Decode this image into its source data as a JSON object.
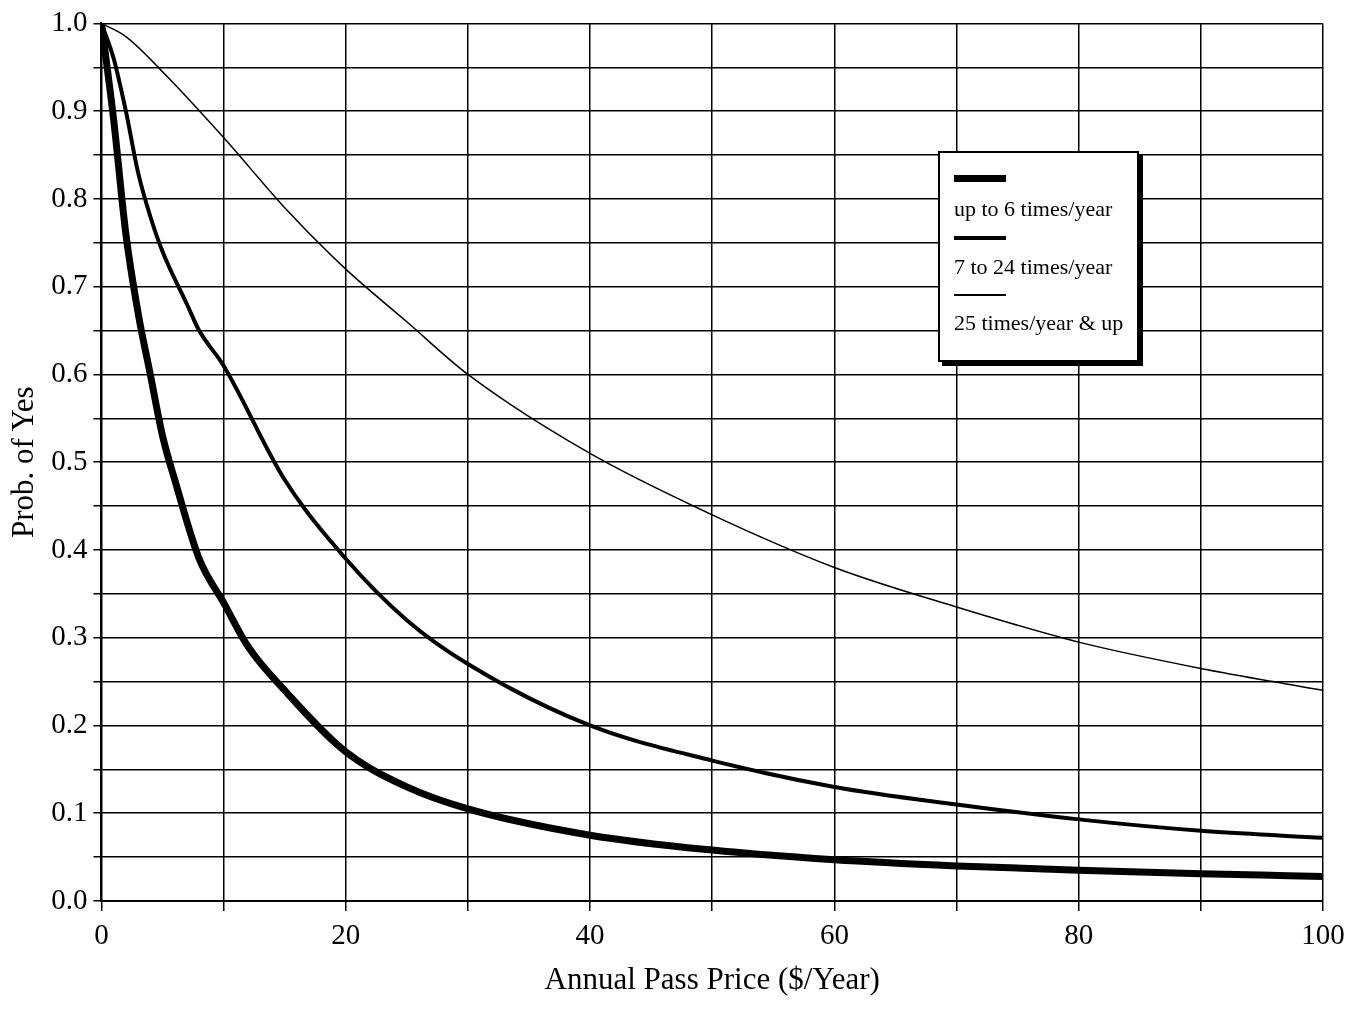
{
  "chart_data": {
    "type": "line",
    "xlabel": "Annual Pass Price ($/Year)",
    "ylabel": "Prob. of Yes",
    "xlim": [
      0,
      100
    ],
    "xticks": [
      0,
      {
        "value": 10,
        "label": null
      },
      20,
      {
        "value": 30,
        "label": null
      },
      40,
      {
        "value": 50,
        "label": null
      },
      60,
      {
        "value": 70,
        "label": null
      },
      80,
      {
        "value": 90,
        "label": null
      },
      100
    ],
    "ylim": [
      0,
      1
    ],
    "yticks": [
      {
        "value": 0,
        "label": "0.0"
      },
      {
        "value": 0.05,
        "label": null
      },
      0.1,
      {
        "value": 0.15,
        "label": null
      },
      0.2,
      {
        "value": 0.25,
        "label": null
      },
      0.3,
      {
        "value": 0.35,
        "label": null
      },
      0.4,
      {
        "value": 0.45,
        "label": null
      },
      0.5,
      {
        "value": 0.55,
        "label": null
      },
      0.6,
      {
        "value": 0.65,
        "label": null
      },
      0.7,
      {
        "value": 0.75,
        "label": null
      },
      0.8,
      {
        "value": 0.85,
        "label": null
      },
      0.9,
      {
        "value": 0.95,
        "label": null
      },
      {
        "value": 1,
        "label": "1.0"
      }
    ],
    "grid": true,
    "legend": "top right",
    "marker": "none",
    "line_style": "solid",
    "series": [
      {
        "name": "up to 6 times/year",
        "color": "#000000",
        "x": [
          0,
          1,
          2,
          3,
          4,
          5,
          6,
          8,
          10,
          12,
          15,
          20,
          25,
          30,
          40,
          50,
          60,
          70,
          80,
          90,
          100
        ],
        "values": [
          1,
          0.89,
          0.76,
          0.67,
          0.6,
          0.53,
          0.48,
          0.39,
          0.34,
          0.29,
          0.24,
          0.17,
          0.13,
          0.105,
          0.075,
          0.058,
          0.047,
          0.04,
          0.035,
          0.031,
          0.028
        ]
      },
      {
        "name": "7 to 24 times/year",
        "color": "#000000",
        "x": [
          0,
          1,
          2,
          3,
          4,
          5,
          7,
          8,
          10,
          15,
          20,
          25,
          30,
          40,
          50,
          60,
          70,
          80,
          90,
          100
        ],
        "values": [
          1,
          0.96,
          0.9,
          0.83,
          0.78,
          0.74,
          0.68,
          0.65,
          0.61,
          0.48,
          0.39,
          0.32,
          0.27,
          0.2,
          0.16,
          0.13,
          0.11,
          0.093,
          0.08,
          0.072
        ]
      },
      {
        "name": "25 times/year & up",
        "color": "#000000",
        "x": [
          0,
          2,
          5,
          10,
          15,
          20,
          25,
          30,
          40,
          50,
          60,
          70,
          80,
          90,
          100
        ],
        "values": [
          1,
          0.985,
          0.945,
          0.87,
          0.79,
          0.72,
          0.66,
          0.6,
          0.51,
          0.44,
          0.38,
          0.335,
          0.295,
          0.265,
          0.24
        ]
      }
    ]
  }
}
